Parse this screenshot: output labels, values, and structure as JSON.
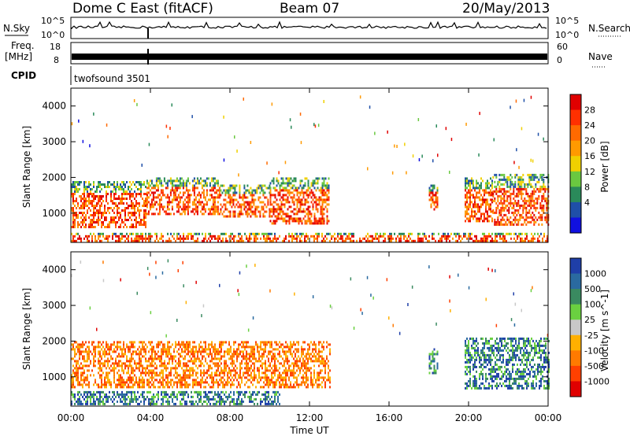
{
  "header": {
    "station": "Dome C East (fitACF)",
    "beam": "Beam 07",
    "date": "20/May/2013"
  },
  "summary": {
    "nsky_label": "N.Sky",
    "nsearch_label": "N.Search",
    "freq_label_line1": "Freq.",
    "freq_label_line2": "[MHz]",
    "nave_label": "Nave",
    "cpid_label": "CPID",
    "cpid_value": "twofsound 3501",
    "noise_ticks_left": [
      "10^5",
      "10^0"
    ],
    "noise_ticks_right": [
      "10^5",
      "10^0"
    ],
    "freq_ticks": [
      "18",
      "8"
    ],
    "nave_ticks": [
      "60",
      "0"
    ]
  },
  "chart_data": [
    {
      "type": "heatmap",
      "name": "power",
      "ylabel": "Slant Range [km]",
      "xlabel": "Time UT",
      "xlim": [
        0,
        24
      ],
      "ylim": [
        180,
        4500
      ],
      "x_ticks": [
        "00:00",
        "04:00",
        "08:00",
        "12:00",
        "16:00",
        "20:00",
        "00:00"
      ],
      "y_ticks": [
        1000,
        2000,
        3000,
        4000
      ],
      "colorbar": {
        "label": "Power [dB]",
        "ticks": [
          "28",
          "24",
          "20",
          "16",
          "12",
          "8",
          "4"
        ],
        "colors": [
          "#e00000",
          "#ff3000",
          "#ff6a00",
          "#ff9a00",
          "#f0d000",
          "#6ac840",
          "#2a8a5a",
          "#1f4fa8",
          "#1010e0"
        ]
      },
      "regions": [
        {
          "t0": 0.0,
          "t1": 3.8,
          "r0": 600,
          "r1": 1900,
          "level": 24
        },
        {
          "t0": 3.8,
          "t1": 7.5,
          "r0": 1000,
          "r1": 2000,
          "level": 20
        },
        {
          "t0": 7.5,
          "t1": 10.0,
          "r0": 900,
          "r1": 1800,
          "level": 26
        },
        {
          "t0": 10.0,
          "t1": 13.0,
          "r0": 700,
          "r1": 2000,
          "level": 24
        },
        {
          "t0": 18.0,
          "t1": 18.4,
          "r0": 1100,
          "r1": 1800,
          "level": 22
        },
        {
          "t0": 19.8,
          "t1": 21.2,
          "r0": 800,
          "r1": 2000,
          "level": 24
        },
        {
          "t0": 21.2,
          "t1": 24.0,
          "r0": 700,
          "r1": 2100,
          "level": 26
        },
        {
          "t0": 0.0,
          "t1": 24.0,
          "r0": 200,
          "r1": 450,
          "level": 10
        }
      ]
    },
    {
      "type": "heatmap",
      "name": "velocity",
      "ylabel": "Slant Range [km]",
      "xlabel": "Time UT",
      "xlim": [
        0,
        24
      ],
      "ylim": [
        180,
        4500
      ],
      "x_ticks": [
        "00:00",
        "04:00",
        "08:00",
        "12:00",
        "16:00",
        "20:00",
        "00:00"
      ],
      "y_ticks": [
        1000,
        2000,
        3000,
        4000
      ],
      "colorbar": {
        "label": "Velocity [m s^-1]",
        "ticks": [
          "1000",
          "500",
          "100",
          "25",
          "-25",
          "-100",
          "-500",
          "-1000"
        ],
        "colors": [
          "#1f3fa8",
          "#2a6aa0",
          "#3a8a60",
          "#6ad040",
          "#c8c8c8",
          "#ffb000",
          "#ff7a00",
          "#ff4000",
          "#e00000"
        ]
      },
      "regions": [
        {
          "t0": 0.0,
          "t1": 13.0,
          "r0": 700,
          "r1": 2000,
          "level": -300
        },
        {
          "t0": 18.0,
          "t1": 18.4,
          "r0": 1100,
          "r1": 1800,
          "level": 200
        },
        {
          "t0": 19.8,
          "t1": 24.0,
          "r0": 700,
          "r1": 2100,
          "level": 300
        },
        {
          "t0": 0.0,
          "t1": 10.5,
          "r0": 250,
          "r1": 600,
          "level": 150
        }
      ]
    }
  ]
}
